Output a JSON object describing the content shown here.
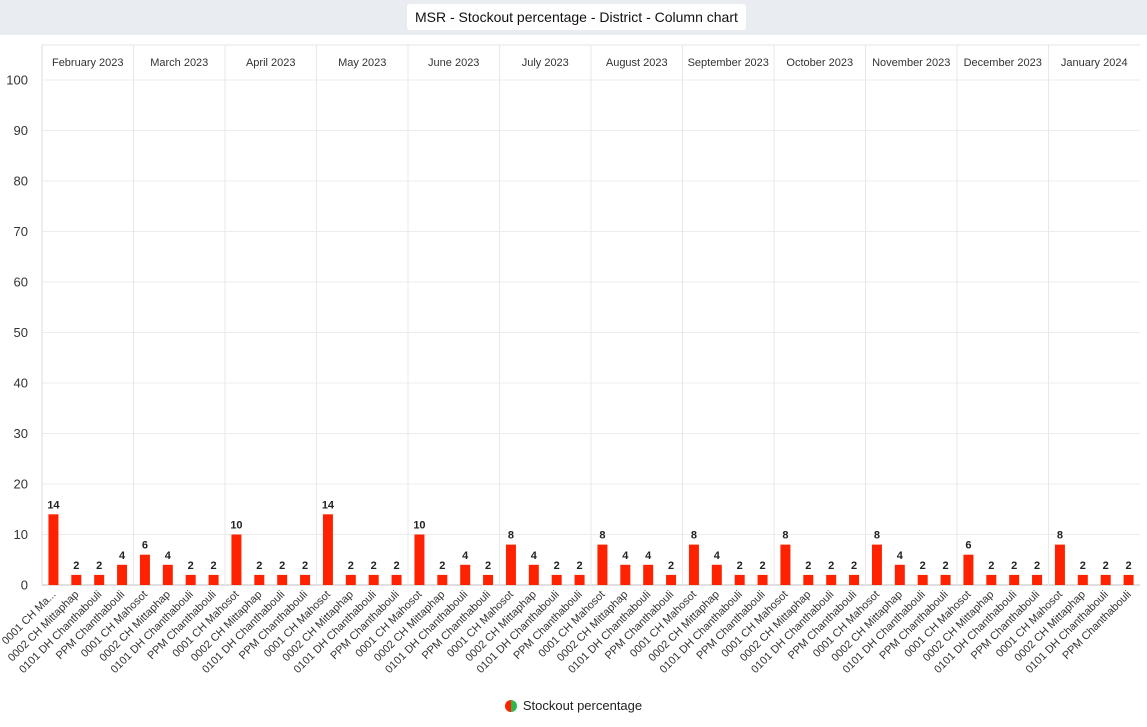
{
  "header": {
    "title": "MSR - Stockout percentage - District - Column chart"
  },
  "chart_data": {
    "type": "bar",
    "y_axis": {
      "min": 0,
      "max": 100,
      "ticks": [
        0,
        10,
        20,
        30,
        40,
        50,
        60,
        70,
        80,
        90,
        100
      ],
      "grid": true
    },
    "bar_color": "#ff2200",
    "facets": [
      {
        "label": "February 2023",
        "categories": [
          "0001 CH Ma...",
          "0002 CH Mittaphap",
          "0101 DH Chanthabouli",
          "PPM Chanthabouli"
        ],
        "values": [
          14,
          2,
          2,
          4
        ]
      },
      {
        "label": "March 2023",
        "categories": [
          "0001 CH Mahosot",
          "0002 CH Mittaphap",
          "0101 DH Chanthabouli",
          "PPM Chanthabouli"
        ],
        "values": [
          6,
          4,
          2,
          2
        ]
      },
      {
        "label": "April 2023",
        "categories": [
          "0001 CH Mahosot",
          "0002 CH Mittaphap",
          "0101 DH Chanthabouli",
          "PPM Chanthabouli"
        ],
        "values": [
          10,
          2,
          2,
          2
        ]
      },
      {
        "label": "May 2023",
        "categories": [
          "0001 CH Mahosot",
          "0002 CH Mittaphap",
          "0101 DH Chanthabouli",
          "PPM Chanthabouli"
        ],
        "values": [
          14,
          2,
          2,
          2
        ]
      },
      {
        "label": "June 2023",
        "categories": [
          "0001 CH Mahosot",
          "0002 CH Mittaphap",
          "0101 DH Chanthabouli",
          "PPM Chanthabouli"
        ],
        "values": [
          10,
          2,
          4,
          2
        ]
      },
      {
        "label": "July 2023",
        "categories": [
          "0001 CH Mahosot",
          "0002 CH Mittaphap",
          "0101 DH Chanthabouli",
          "PPM Chanthabouli"
        ],
        "values": [
          8,
          4,
          2,
          2
        ]
      },
      {
        "label": "August 2023",
        "categories": [
          "0001 CH Mahosot",
          "0002 CH Mittaphap",
          "0101 DH Chanthabouli",
          "PPM Chanthabouli"
        ],
        "values": [
          8,
          4,
          4,
          2
        ]
      },
      {
        "label": "September 2023",
        "categories": [
          "0001 CH Mahosot",
          "0002 CH Mittaphap",
          "0101 DH Chanthabouli",
          "PPM Chanthabouli"
        ],
        "values": [
          8,
          4,
          2,
          2
        ]
      },
      {
        "label": "October 2023",
        "categories": [
          "0001 CH Mahosot",
          "0002 CH Mittaphap",
          "0101 DH Chanthabouli",
          "PPM Chanthabouli"
        ],
        "values": [
          8,
          2,
          2,
          2
        ]
      },
      {
        "label": "November 2023",
        "categories": [
          "0001 CH Mahosot",
          "0002 CH Mittaphap",
          "0101 DH Chanthabouli",
          "PPM Chanthabouli"
        ],
        "values": [
          8,
          4,
          2,
          2
        ]
      },
      {
        "label": "December 2023",
        "categories": [
          "0001 CH Mahosot",
          "0002 CH Mittaphap",
          "0101 DH Chanthabouli",
          "PPM Chanthabouli"
        ],
        "values": [
          6,
          2,
          2,
          2
        ]
      },
      {
        "label": "January 2024",
        "categories": [
          "0001 CH Mahosot",
          "0002 CH Mittaphap",
          "0101 DH Chanthabouli",
          "PPM Chanthabouli"
        ],
        "values": [
          8,
          2,
          2,
          2
        ]
      }
    ],
    "legend": {
      "items": [
        {
          "name": "Stockout percentage",
          "colors": [
            "#ff2200",
            "#2db84d"
          ]
        }
      ],
      "placement": "bottom-center"
    }
  }
}
